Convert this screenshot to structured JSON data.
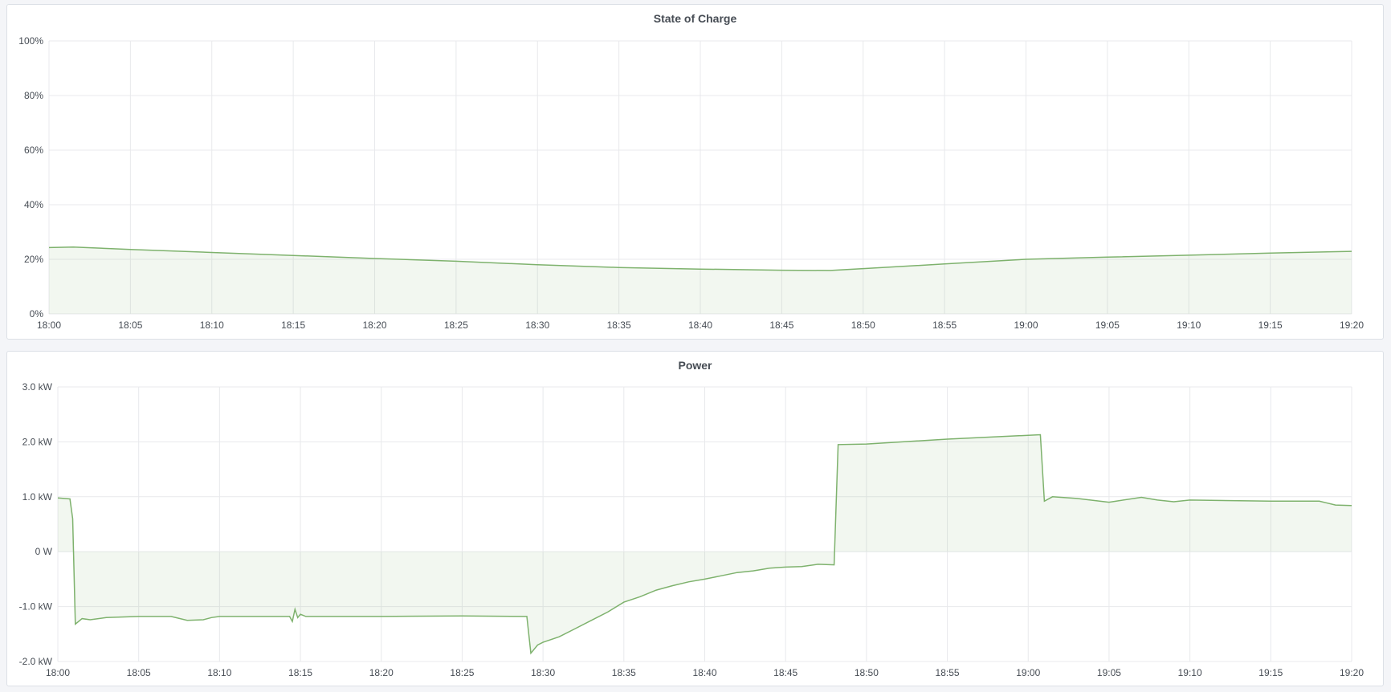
{
  "colors": {
    "line": "#7eb26d",
    "fill": "#7eb26d",
    "grid": "#e8e9ec",
    "background": "#f4f5f8"
  },
  "chart_data": [
    {
      "type": "area",
      "title": "State of Charge",
      "x_ticks": [
        "18:00",
        "18:05",
        "18:10",
        "18:15",
        "18:20",
        "18:25",
        "18:30",
        "18:35",
        "18:40",
        "18:45",
        "18:50",
        "18:55",
        "19:00",
        "19:05",
        "19:10",
        "19:15",
        "19:20"
      ],
      "y_ticks": [
        0,
        20,
        40,
        60,
        80,
        100
      ],
      "y_tick_labels": [
        "0%",
        "20%",
        "40%",
        "60%",
        "80%",
        "100%"
      ],
      "xlim": [
        "18:00",
        "19:20"
      ],
      "ylim": [
        0,
        100
      ],
      "grid": true,
      "series": [
        {
          "x": [
            "18:00:00",
            "18:01:30",
            "18:05:00",
            "18:10:00",
            "18:15:00",
            "18:20:00",
            "18:25:00",
            "18:30:00",
            "18:35:00",
            "18:40:00",
            "18:45:00",
            "18:48:00",
            "18:50:00",
            "18:55:00",
            "19:00:00",
            "19:05:00",
            "19:10:00",
            "19:15:00",
            "19:20:00"
          ],
          "y": [
            24.3,
            24.5,
            23.6,
            22.5,
            21.4,
            20.3,
            19.3,
            18.0,
            17.0,
            16.4,
            16.0,
            15.9,
            16.6,
            18.3,
            20.0,
            20.8,
            21.5,
            22.3,
            22.9
          ]
        }
      ]
    },
    {
      "type": "area",
      "title": "Power",
      "x_ticks": [
        "18:00",
        "18:05",
        "18:10",
        "18:15",
        "18:20",
        "18:25",
        "18:30",
        "18:35",
        "18:40",
        "18:45",
        "18:50",
        "18:55",
        "19:00",
        "19:05",
        "19:10",
        "19:15",
        "19:20"
      ],
      "y_ticks": [
        -2,
        -1,
        0,
        1,
        2,
        3
      ],
      "y_tick_labels": [
        "-2.0 kW",
        "-1.0 kW",
        "0 W",
        "1.0 kW",
        "2.0 kW",
        "3.0 kW"
      ],
      "xlim": [
        "18:00",
        "19:20"
      ],
      "ylim": [
        -2,
        3
      ],
      "grid": true,
      "series": [
        {
          "x": [
            "18:00:00",
            "18:00:45",
            "18:00:55",
            "18:01:05",
            "18:01:30",
            "18:02:00",
            "18:03:00",
            "18:05:00",
            "18:07:00",
            "18:08:00",
            "18:09:00",
            "18:09:30",
            "18:10:00",
            "18:14:20",
            "18:14:30",
            "18:14:40",
            "18:14:50",
            "18:15:00",
            "18:15:20",
            "18:20:00",
            "18:25:00",
            "18:29:00",
            "18:29:15",
            "18:29:40",
            "18:30:00",
            "18:31:00",
            "18:32:00",
            "18:33:00",
            "18:34:00",
            "18:35:00",
            "18:36:00",
            "18:37:00",
            "18:38:00",
            "18:39:00",
            "18:40:00",
            "18:41:00",
            "18:42:00",
            "18:43:00",
            "18:44:00",
            "18:45:00",
            "18:46:00",
            "18:47:00",
            "18:48:00",
            "18:48:15",
            "18:50:00",
            "18:55:00",
            "19:00:00",
            "19:00:45",
            "19:01:00",
            "19:01:30",
            "19:03:00",
            "19:05:00",
            "19:07:00",
            "19:08:00",
            "19:09:00",
            "19:10:00",
            "19:15:00",
            "19:18:00",
            "19:19:00",
            "19:20:00"
          ],
          "y": [
            0.98,
            0.96,
            0.6,
            -1.32,
            -1.22,
            -1.24,
            -1.2,
            -1.18,
            -1.18,
            -1.25,
            -1.24,
            -1.2,
            -1.18,
            -1.18,
            -1.27,
            -1.05,
            -1.2,
            -1.14,
            -1.18,
            -1.18,
            -1.17,
            -1.18,
            -1.85,
            -1.7,
            -1.65,
            -1.55,
            -1.4,
            -1.25,
            -1.1,
            -0.92,
            -0.82,
            -0.7,
            -0.62,
            -0.55,
            -0.5,
            -0.44,
            -0.38,
            -0.35,
            -0.3,
            -0.28,
            -0.27,
            -0.23,
            -0.24,
            1.95,
            1.96,
            2.05,
            2.12,
            2.13,
            0.92,
            1.0,
            0.97,
            0.9,
            0.99,
            0.94,
            0.91,
            0.94,
            0.92,
            0.92,
            0.85,
            0.84
          ]
        }
      ]
    }
  ]
}
